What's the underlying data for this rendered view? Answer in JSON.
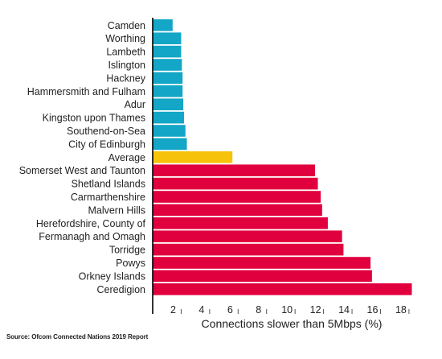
{
  "source": "Source: Ofcom Connected Nations 2019 Report",
  "colors": {
    "low": "#13a6c6",
    "average": "#f6c20a",
    "high": "#e1003e",
    "axis": "#000000"
  },
  "chart_data": {
    "type": "bar",
    "orientation": "horizontal",
    "xlabel": "Connections slower than 5Mbps (%)",
    "ylabel": "",
    "title": "",
    "xlim": [
      0,
      18.4
    ],
    "xticks": [
      2,
      4,
      6,
      8,
      10,
      12,
      14,
      16,
      18
    ],
    "grid": false,
    "categories": [
      "Camden",
      "Worthing",
      "Lambeth",
      "Islington",
      "Hackney",
      "Hammersmith and Fulham",
      "Adur",
      "Kingston upon Thames",
      "Southend-on-Sea",
      "City of Edinburgh",
      "Average",
      "Somerset West and Taunton",
      "Shetland Islands",
      "Carmarthenshire",
      "Malvern Hills",
      "Herefordshire, County of",
      "Fermanagh and Omagh",
      "Torridge",
      "Powys",
      "Orkney Islands",
      "Ceredigion"
    ],
    "values": [
      1.4,
      2.0,
      2.0,
      2.05,
      2.1,
      2.1,
      2.15,
      2.2,
      2.3,
      2.4,
      5.6,
      11.4,
      11.6,
      11.8,
      11.9,
      12.3,
      13.3,
      13.4,
      15.3,
      15.4,
      18.2
    ],
    "groups": [
      "low",
      "low",
      "low",
      "low",
      "low",
      "low",
      "low",
      "low",
      "low",
      "low",
      "average",
      "high",
      "high",
      "high",
      "high",
      "high",
      "high",
      "high",
      "high",
      "high",
      "high"
    ]
  }
}
